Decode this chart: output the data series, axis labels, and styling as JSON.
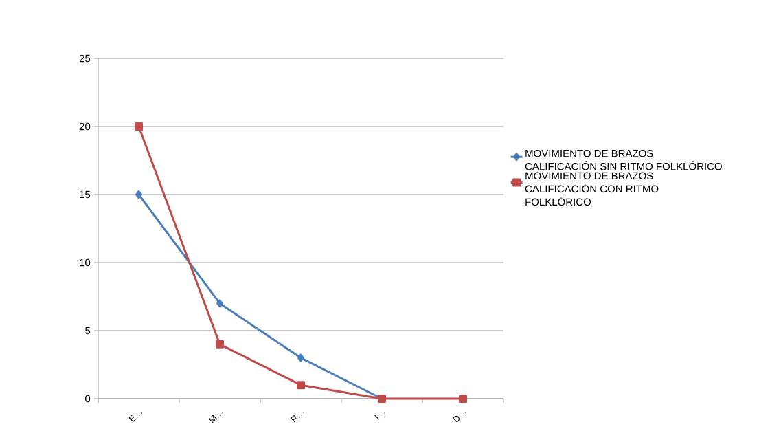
{
  "chart_data": {
    "type": "line",
    "categories": [
      "E…",
      "M…",
      "R…",
      "I…",
      "D…"
    ],
    "series": [
      {
        "name": "MOVIMIENTO DE BRAZOS CALIFICACIÓN SIN RITMO FOLKLÓRICO",
        "color": "#4a7ebb",
        "marker": "diamond",
        "values": [
          15,
          7,
          3,
          0,
          null
        ]
      },
      {
        "name": "MOVIMIENTO DE BRAZOS CALIFICACIÓN CON RITMO FOLKLÓRICO",
        "color": "#be4b48",
        "marker": "square",
        "values": [
          20,
          4,
          1,
          0,
          0
        ]
      }
    ],
    "ylim": [
      0,
      25
    ],
    "yticks": [
      0,
      5,
      10,
      15,
      20,
      25
    ],
    "grid": "y",
    "legend": "right"
  }
}
